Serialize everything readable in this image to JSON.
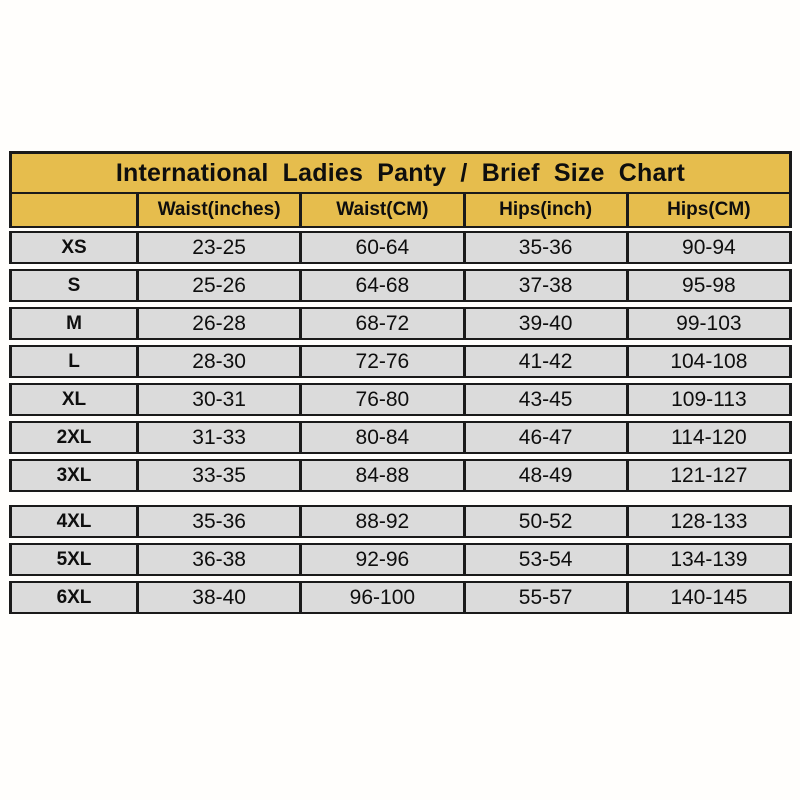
{
  "colors": {
    "title_header_gold": "#e6bd4d",
    "row_gray": "#dbdbdb",
    "border_black": "#1a1a1a",
    "page_background": "#fffefc",
    "text": "#0e0e0e"
  },
  "chart_data": {
    "type": "table",
    "title": "International Ladies Panty / Brief Size Chart",
    "columns": [
      "",
      "Waist(inches)",
      "Waist(CM)",
      "Hips(inch)",
      "Hips(CM)"
    ],
    "rows": [
      {
        "size": "XS",
        "waist_inches": "23-25",
        "waist_cm": "60-64",
        "hips_inch": "35-36",
        "hips_cm": "90-94"
      },
      {
        "size": "S",
        "waist_inches": "25-26",
        "waist_cm": "64-68",
        "hips_inch": "37-38",
        "hips_cm": "95-98"
      },
      {
        "size": "M",
        "waist_inches": "26-28",
        "waist_cm": "68-72",
        "hips_inch": "39-40",
        "hips_cm": "99-103"
      },
      {
        "size": "L",
        "waist_inches": "28-30",
        "waist_cm": "72-76",
        "hips_inch": "41-42",
        "hips_cm": "104-108"
      },
      {
        "size": "XL",
        "waist_inches": "30-31",
        "waist_cm": "76-80",
        "hips_inch": "43-45",
        "hips_cm": "109-113"
      },
      {
        "size": "2XL",
        "waist_inches": "31-33",
        "waist_cm": "80-84",
        "hips_inch": "46-47",
        "hips_cm": "114-120"
      },
      {
        "size": "3XL",
        "waist_inches": "33-35",
        "waist_cm": "84-88",
        "hips_inch": "48-49",
        "hips_cm": "121-127"
      },
      {
        "size": "4XL",
        "waist_inches": "35-36",
        "waist_cm": "88-92",
        "hips_inch": "50-52",
        "hips_cm": "128-133"
      },
      {
        "size": "5XL",
        "waist_inches": "36-38",
        "waist_cm": "92-96",
        "hips_inch": "53-54",
        "hips_cm": "134-139"
      },
      {
        "size": "6XL",
        "waist_inches": "38-40",
        "waist_cm": "96-100",
        "hips_inch": "55-57",
        "hips_cm": "140-145"
      }
    ]
  }
}
